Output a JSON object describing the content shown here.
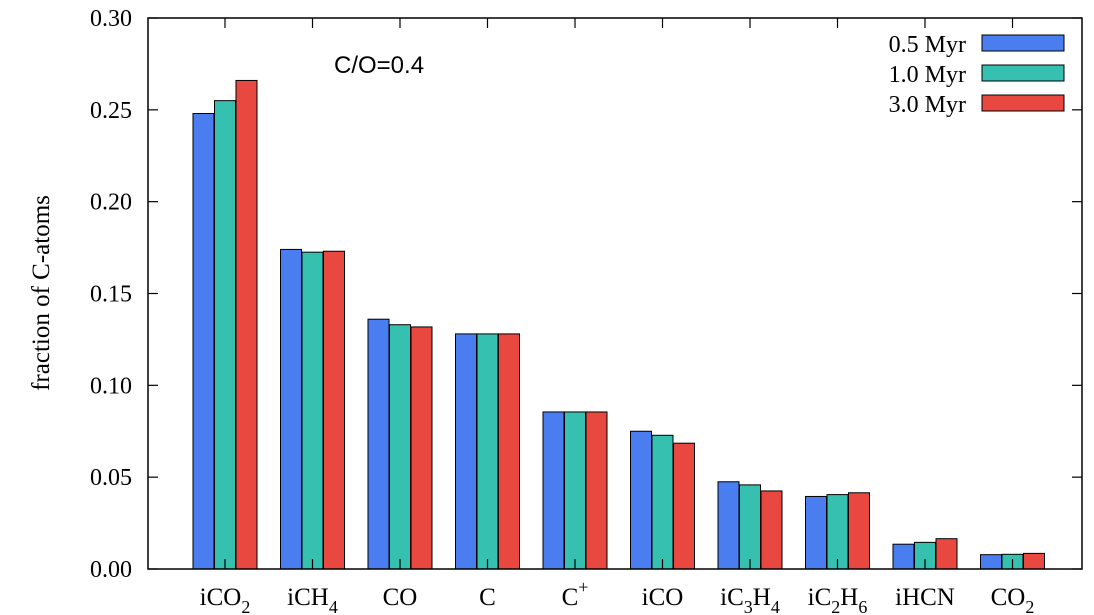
{
  "chart_data": {
    "type": "bar",
    "categories": [
      {
        "base": "iCO",
        "sub": "2",
        "sup": ""
      },
      {
        "base": "iCH",
        "sub": "4",
        "sup": ""
      },
      {
        "base": "CO",
        "sub": "",
        "sup": ""
      },
      {
        "base": "C",
        "sub": "",
        "sup": ""
      },
      {
        "base": "C",
        "sub": "",
        "sup": "+"
      },
      {
        "base": "iCO",
        "sub": "",
        "sup": ""
      },
      {
        "base": "iC",
        "sub": "3",
        "sup": "",
        "base2": "H",
        "sub2": "4"
      },
      {
        "base": "iC",
        "sub": "2",
        "sup": "",
        "base2": "H",
        "sub2": "6"
      },
      {
        "base": "iHCN",
        "sub": "",
        "sup": ""
      },
      {
        "base": "CO",
        "sub": "2",
        "sup": ""
      }
    ],
    "series": [
      {
        "name": "0.5 Myr",
        "color": "#4a7ef0",
        "values": [
          0.248,
          0.174,
          0.136,
          0.128,
          0.0855,
          0.075,
          0.0475,
          0.0395,
          0.0135,
          0.0078
        ]
      },
      {
        "name": "1.0 Myr",
        "color": "#36c0b0",
        "values": [
          0.255,
          0.1725,
          0.133,
          0.128,
          0.0855,
          0.0728,
          0.0458,
          0.0405,
          0.0145,
          0.008
        ]
      },
      {
        "name": "3.0 Myr",
        "color": "#e84840",
        "values": [
          0.266,
          0.173,
          0.1318,
          0.128,
          0.0855,
          0.0685,
          0.0425,
          0.0415,
          0.0165,
          0.0085
        ]
      }
    ],
    "ylabel": "fraction of C-atoms",
    "xlabel": "",
    "ylim": [
      0.0,
      0.3
    ],
    "yticks": [
      "0.00",
      "0.05",
      "0.10",
      "0.15",
      "0.20",
      "0.25",
      "0.30"
    ],
    "annotation": "C/O=0.4",
    "legend_position": "top-right",
    "grid": false
  }
}
